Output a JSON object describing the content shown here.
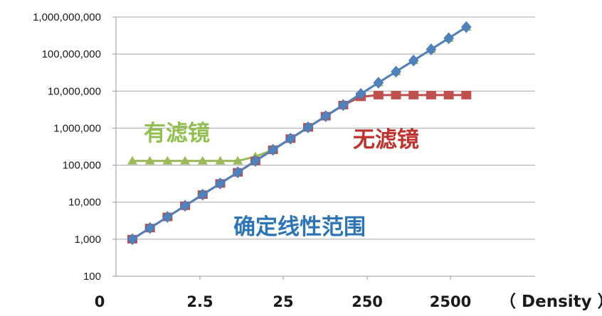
{
  "chart_data": {
    "type": "line",
    "y_scale": "log",
    "ylim": [
      100,
      1000000000
    ],
    "y_ticks": [
      "100",
      "1,000",
      "10,000",
      "100,000",
      "1,000,000",
      "10,000,000",
      "100,000,000",
      "1,000,000,000"
    ],
    "x_ticks": [
      "0",
      "2.5",
      "25",
      "250",
      "2500"
    ],
    "x_unit": "（ Density ）",
    "grid": "horizontal",
    "x": [
      0.2,
      0.4,
      0.8,
      1.6,
      3.2,
      6.4,
      12.8,
      25.6,
      51.2,
      102.4,
      204.8,
      409.6,
      819.2,
      1638.4,
      3276.8,
      6553.6,
      13107.2,
      26214.4,
      52428.8,
      104857.6,
      209715.2
    ],
    "series": [
      {
        "color": "#9bbb59",
        "marker": "triangle",
        "values": [
          130000,
          130000,
          130000,
          130000,
          130000,
          130000,
          130000,
          170000,
          260000,
          520000,
          1050000,
          2100000,
          4200000,
          8400000,
          16800000,
          33500000,
          67000000,
          134000000,
          268000000,
          536000000,
          null
        ]
      },
      {
        "color": "#c0504d",
        "marker": "square",
        "values": [
          1000,
          2000,
          4000,
          8000,
          16000,
          32000,
          64000,
          130000,
          260000,
          520000,
          1050000,
          2100000,
          4200000,
          7000000,
          7800000,
          7800000,
          7800000,
          7800000,
          7800000,
          7800000,
          null
        ]
      },
      {
        "color": "#4f81bd",
        "marker": "diamond",
        "values": [
          1000,
          2000,
          4000,
          8000,
          16000,
          32000,
          64000,
          130000,
          260000,
          520000,
          1050000,
          2100000,
          4200000,
          8400000,
          16800000,
          33500000,
          67000000,
          134000000,
          268000000,
          536000000,
          null
        ]
      }
    ],
    "annotations": [
      {
        "text": "有滤镜",
        "color": "#92c050",
        "near": "filtered-plateau"
      },
      {
        "text": "无滤镜",
        "color": "#c0312b",
        "near": "unfiltered-plateau"
      },
      {
        "text": "确定线性范围",
        "color": "#2e75b6",
        "near": "linear-range"
      }
    ]
  }
}
